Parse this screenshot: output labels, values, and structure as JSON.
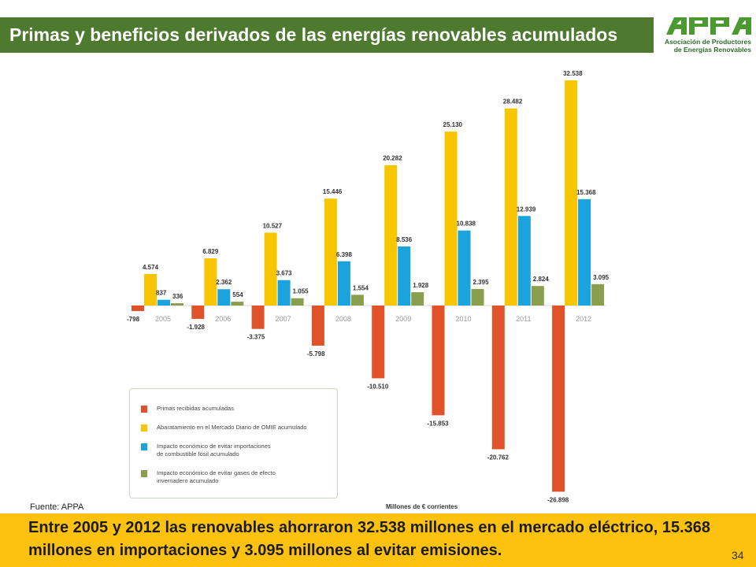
{
  "header": {
    "title": "Primas y beneficios derivados de las energías renovables acumulados",
    "logo_text": "APPA",
    "logo_subtitle_1": "Asociación de Productores",
    "logo_subtitle_2": "de Energías Renovables"
  },
  "colors": {
    "header_bg": "#4e7a2f",
    "note_bg": "#fdc20f",
    "series": [
      "#e0522a",
      "#f7c600",
      "#1aa3dd",
      "#8a9f4e"
    ]
  },
  "chart_data": {
    "type": "bar",
    "categories": [
      "2005",
      "2006",
      "2007",
      "2008",
      "2009",
      "2010",
      "2011",
      "2012"
    ],
    "value_labels": [
      [
        "-798",
        "-1.928",
        "-3.375",
        "-5.798",
        "-10.510",
        "-15.853",
        "-20.762",
        "-26.898"
      ],
      [
        "4.574",
        "6.829",
        "10.527",
        "15.446",
        "20.282",
        "25.130",
        "28.482",
        "32.538"
      ],
      [
        "837",
        "2.362",
        "3.673",
        "6.398",
        "8.536",
        "10.838",
        "12.939",
        "15.368"
      ],
      [
        "336",
        "554",
        "1.055",
        "1.554",
        "1.928",
        "2.395",
        "2.824",
        "3.095"
      ]
    ],
    "series": [
      {
        "name": "Primas recibidas acumuladas",
        "values": [
          -798,
          -1928,
          -3375,
          -5798,
          -10510,
          -15853,
          -20762,
          -26898
        ]
      },
      {
        "name": "Abaratamiento en el Mercado Diario de OMIE acumulado",
        "values": [
          4574,
          6829,
          10527,
          15446,
          20282,
          25130,
          28482,
          32538
        ]
      },
      {
        "name": "Impacto económico de evitar importaciones de combustible fósil acumulado",
        "values": [
          837,
          2362,
          3673,
          6398,
          8536,
          10838,
          12939,
          15368
        ]
      },
      {
        "name": "Impacto económico de evitar gases de efecto invernadero acumulado",
        "values": [
          336,
          554,
          1055,
          1554,
          1928,
          2395,
          2824,
          3095
        ]
      }
    ],
    "legend_position": "bottom-left",
    "units": "Millones de € corrientes",
    "grid": false
  },
  "legend": {
    "items": [
      {
        "lines": [
          "Primas recibidas acumuladas"
        ]
      },
      {
        "lines": [
          "Abaratamiento en el Mercado Diario de OMIE acumulado"
        ]
      },
      {
        "lines": [
          "Impacto económico de evitar importaciones",
          "de combustible fósil acumulado"
        ]
      },
      {
        "lines": [
          "Impacto económico de evitar gases de efecto",
          "invernadero acumulado"
        ]
      }
    ]
  },
  "source": "Fuente: APPA",
  "note": "Entre 2005 y 2012 las renovables ahorraron 32.538 millones en el mercado eléctrico, 15.368 millones en importaciones y 3.095 millones al evitar emisiones.",
  "page_number": "34"
}
